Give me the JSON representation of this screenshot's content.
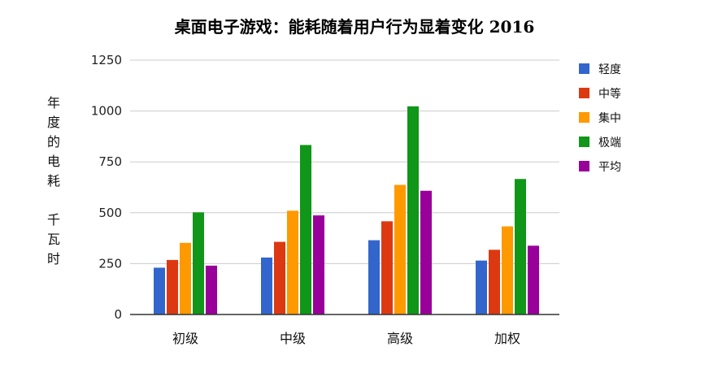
{
  "chart_data": {
    "type": "bar",
    "title": "桌面电子游戏：能耗随着用户行为显着变化 2016",
    "ylabel_lines": [
      "年",
      "度",
      "的",
      "电",
      "耗",
      "",
      "千",
      "瓦",
      "时"
    ],
    "xlabel": "",
    "ylim": [
      0,
      1250
    ],
    "yticks": [
      0,
      250,
      500,
      750,
      1000,
      1250
    ],
    "grid": true,
    "legend_position": "right",
    "categories": [
      "初级",
      "中级",
      "高级",
      "加权"
    ],
    "series": [
      {
        "name": "轻度",
        "color": "#3366cc",
        "values": [
          230,
          280,
          365,
          265
        ]
      },
      {
        "name": "中等",
        "color": "#dc3912",
        "values": [
          268,
          357,
          458,
          318
        ]
      },
      {
        "name": "集中",
        "color": "#ff9900",
        "values": [
          352,
          510,
          637,
          433
        ]
      },
      {
        "name": "极端",
        "color": "#109618",
        "values": [
          502,
          833,
          1023,
          666
        ]
      },
      {
        "name": "平均",
        "color": "#990099",
        "values": [
          240,
          487,
          608,
          338
        ]
      }
    ]
  }
}
